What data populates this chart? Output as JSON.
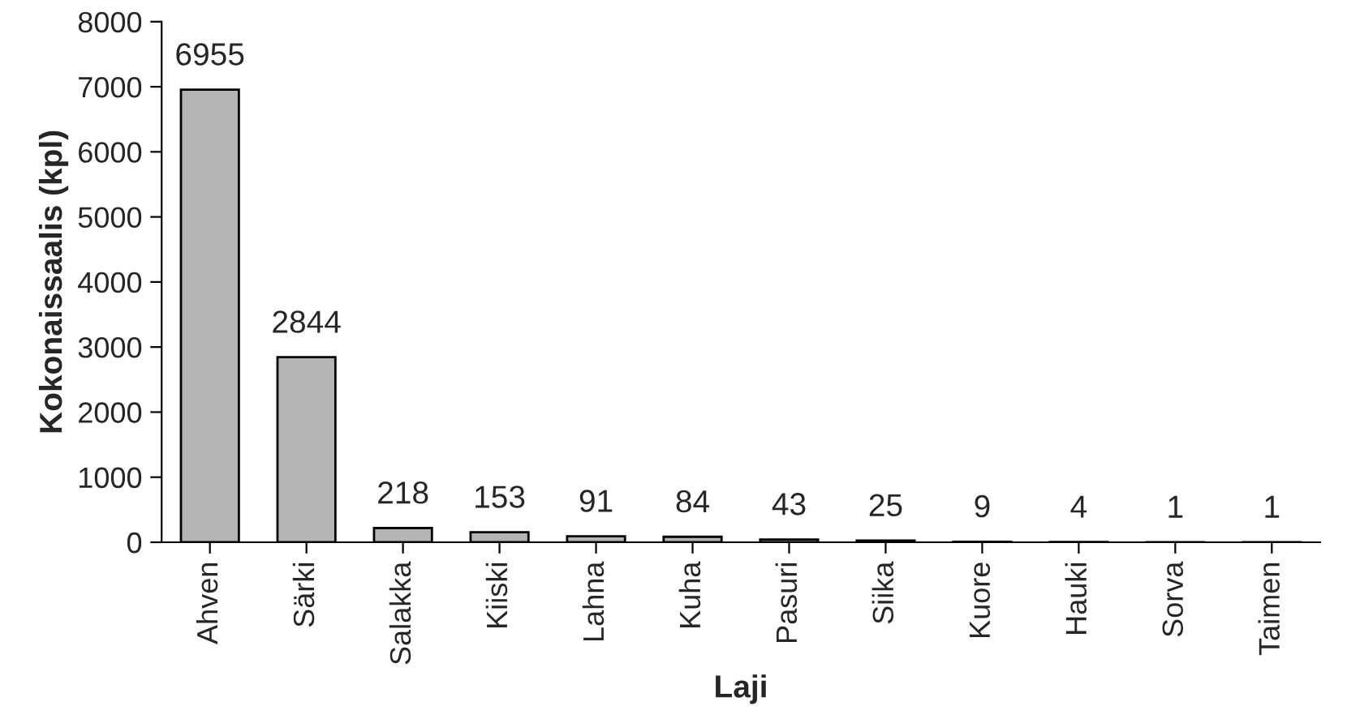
{
  "chart_data": {
    "type": "bar",
    "xlabel": "Laji",
    "ylabel": "Kokonaissaalis (kpl)",
    "categories": [
      "Ahven",
      "Särki",
      "Salakka",
      "Kiiski",
      "Lahna",
      "Kuha",
      "Pasuri",
      "Siika",
      "Kuore",
      "Hauki",
      "Sorva",
      "Taimen"
    ],
    "values": [
      6955,
      2844,
      218,
      153,
      91,
      84,
      43,
      25,
      9,
      4,
      1,
      1
    ],
    "color": "#b4b4b4",
    "data_labels": true,
    "ylim": [
      0,
      8000
    ],
    "yticks": [
      0,
      1000,
      2000,
      3000,
      4000,
      5000,
      6000,
      7000,
      8000
    ],
    "grid": false,
    "legend": false
  }
}
